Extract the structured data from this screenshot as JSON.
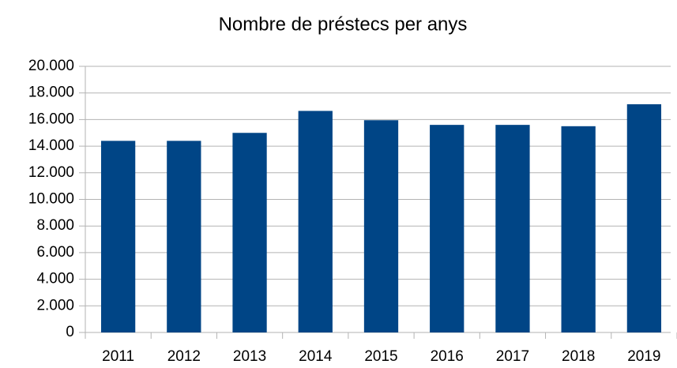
{
  "chart_data": {
    "type": "bar",
    "title": "Nombre de préstecs per anys",
    "categories": [
      "2011",
      "2012",
      "2013",
      "2014",
      "2015",
      "2016",
      "2017",
      "2018",
      "2019"
    ],
    "values": [
      14400,
      14400,
      15000,
      16650,
      15950,
      15600,
      15600,
      15500,
      17150
    ],
    "color": "#004586",
    "ylim": [
      0,
      20000
    ],
    "yticks": [
      0,
      {
        "value": 2000,
        "label": "2.000"
      },
      {
        "value": 4000,
        "label": "4.000"
      },
      {
        "value": 6000,
        "label": "6.000"
      },
      {
        "value": 8000,
        "label": "8.000"
      },
      {
        "value": 10000,
        "label": "10.000"
      },
      {
        "value": 12000,
        "label": "12.000"
      },
      {
        "value": 14000,
        "label": "14.000"
      },
      {
        "value": 16000,
        "label": "16.000"
      },
      {
        "value": 18000,
        "label": "18.000"
      },
      {
        "value": 20000,
        "label": "20.000"
      }
    ],
    "grid": true
  }
}
